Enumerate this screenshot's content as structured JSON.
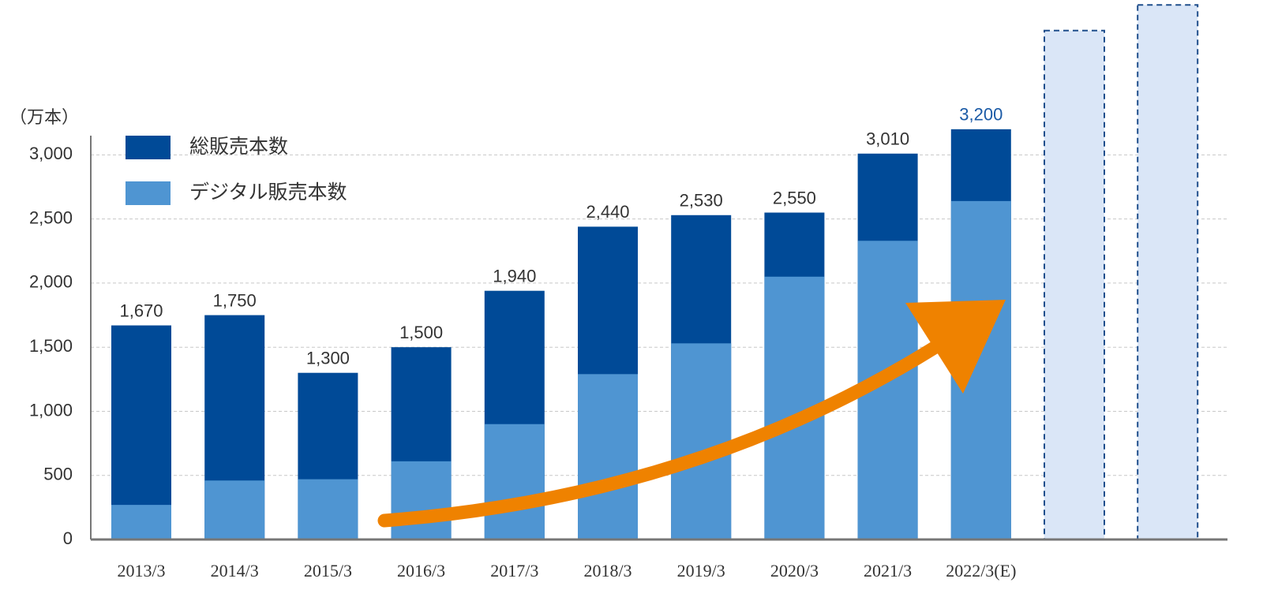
{
  "chart_data": {
    "type": "bar",
    "unit_label": "（万本）",
    "categories": [
      "2013/3",
      "2014/3",
      "2015/3",
      "2016/3",
      "2017/3",
      "2018/3",
      "2019/3",
      "2020/3",
      "2021/3",
      "2022/3(E)",
      null,
      null
    ],
    "series": [
      {
        "name": "総販売本数",
        "color": "#004a97",
        "values": [
          1670,
          1750,
          1300,
          1500,
          1940,
          2440,
          2530,
          2550,
          3010,
          3200,
          null,
          null
        ],
        "value_labels": [
          "1,670",
          "1,750",
          "1,300",
          "1,500",
          "1,940",
          "2,440",
          "2,530",
          "2,550",
          "3,010",
          "3,200",
          null,
          null
        ],
        "value_label_colors": [
          "#333333",
          "#333333",
          "#333333",
          "#333333",
          "#333333",
          "#333333",
          "#333333",
          "#333333",
          "#333333",
          "#1a5aa6",
          null,
          null
        ]
      },
      {
        "name": "デジタル販売本数",
        "color": "#4f95d2",
        "values": [
          270,
          460,
          470,
          610,
          900,
          1290,
          1530,
          2050,
          2330,
          2640,
          null,
          null
        ]
      }
    ],
    "placeholder_bars": {
      "fill": "#dae6f7",
      "border": "#1f4e8c",
      "values": [
        null,
        null,
        null,
        null,
        null,
        null,
        null,
        null,
        null,
        null,
        3970,
        4170
      ]
    },
    "ylim": [
      0,
      3150
    ],
    "yticks": [
      0,
      500,
      {
        "value": 1000,
        "label": "1,000"
      },
      {
        "value": 1500,
        "label": "1,500"
      },
      {
        "value": 2000,
        "label": "2,000"
      },
      {
        "value": 2500,
        "label": "2,500"
      },
      {
        "value": 3000,
        "label": "3,000"
      }
    ],
    "grid": true,
    "legend": "top-left"
  }
}
